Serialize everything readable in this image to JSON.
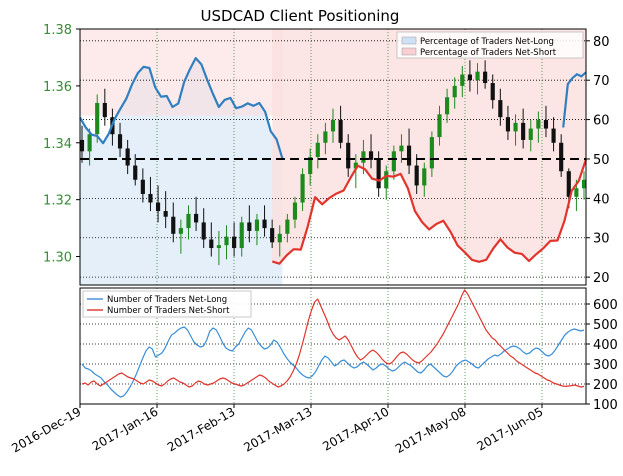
{
  "title": "USDCAD Client Positioning",
  "chart_data": [
    {
      "type": "candlestick+line",
      "title": "USDCAD Client Positioning",
      "price_axis": {
        "side": "left",
        "ylim": [
          1.29,
          1.38
        ],
        "ticks": [
          "1.30",
          "1.32",
          "1.34",
          "1.36",
          "1.38"
        ],
        "tick_values": [
          1.3,
          1.32,
          1.34,
          1.36,
          1.38
        ],
        "color": "#3a8a3a"
      },
      "percent_axis": {
        "side": "right",
        "ylim": [
          18,
          83
        ],
        "ticks": [
          "20",
          "30",
          "40",
          "50",
          "60",
          "70",
          "80"
        ],
        "tick_values": [
          20,
          30,
          40,
          50,
          60,
          70,
          80
        ]
      },
      "reference_line": {
        "value": 50,
        "style": "dashed"
      },
      "legend": {
        "placement": "top-right",
        "entries": [
          {
            "label": "Percentage of Traders Net-Long",
            "color": "#cfe2f5"
          },
          {
            "label": "Percentage of Traders Net-Short",
            "color": "#f9d0d0"
          }
        ]
      },
      "candles": [
        [
          1.341,
          1.346,
          1.333,
          1.337
        ],
        [
          1.337,
          1.345,
          1.332,
          1.343
        ],
        [
          1.343,
          1.357,
          1.34,
          1.354
        ],
        [
          1.354,
          1.359,
          1.346,
          1.349
        ],
        [
          1.349,
          1.352,
          1.339,
          1.343
        ],
        [
          1.343,
          1.347,
          1.335,
          1.338
        ],
        [
          1.338,
          1.341,
          1.329,
          1.332
        ],
        [
          1.332,
          1.336,
          1.325,
          1.327
        ],
        [
          1.327,
          1.331,
          1.319,
          1.322
        ],
        [
          1.322,
          1.328,
          1.316,
          1.319
        ],
        [
          1.319,
          1.325,
          1.312,
          1.316
        ],
        [
          1.316,
          1.323,
          1.31,
          1.314
        ],
        [
          1.314,
          1.319,
          1.305,
          1.308
        ],
        [
          1.308,
          1.313,
          1.301,
          1.31
        ],
        [
          1.31,
          1.318,
          1.306,
          1.315
        ],
        [
          1.315,
          1.321,
          1.309,
          1.312
        ],
        [
          1.312,
          1.317,
          1.303,
          1.306
        ],
        [
          1.306,
          1.312,
          1.3,
          1.303
        ],
        [
          1.303,
          1.309,
          1.297,
          1.304
        ],
        [
          1.304,
          1.311,
          1.299,
          1.307
        ],
        [
          1.307,
          1.312,
          1.3,
          1.303
        ],
        [
          1.303,
          1.314,
          1.3,
          1.312
        ],
        [
          1.312,
          1.318,
          1.305,
          1.309
        ],
        [
          1.309,
          1.315,
          1.304,
          1.313
        ],
        [
          1.313,
          1.318,
          1.307,
          1.31
        ],
        [
          1.31,
          1.313,
          1.303,
          1.305
        ],
        [
          1.305,
          1.311,
          1.3,
          1.308
        ],
        [
          1.308,
          1.315,
          1.305,
          1.313
        ],
        [
          1.313,
          1.321,
          1.31,
          1.319
        ],
        [
          1.319,
          1.331,
          1.316,
          1.329
        ],
        [
          1.329,
          1.338,
          1.325,
          1.335
        ],
        [
          1.335,
          1.343,
          1.331,
          1.34
        ],
        [
          1.34,
          1.347,
          1.336,
          1.344
        ],
        [
          1.344,
          1.352,
          1.34,
          1.348
        ],
        [
          1.348,
          1.353,
          1.338,
          1.34
        ],
        [
          1.34,
          1.343,
          1.328,
          1.331
        ],
        [
          1.331,
          1.336,
          1.324,
          1.333
        ],
        [
          1.333,
          1.341,
          1.329,
          1.337
        ],
        [
          1.337,
          1.343,
          1.331,
          1.334
        ],
        [
          1.334,
          1.337,
          1.321,
          1.324
        ],
        [
          1.324,
          1.332,
          1.32,
          1.33
        ],
        [
          1.33,
          1.339,
          1.327,
          1.337
        ],
        [
          1.337,
          1.343,
          1.333,
          1.339
        ],
        [
          1.339,
          1.345,
          1.329,
          1.332
        ],
        [
          1.332,
          1.336,
          1.322,
          1.325
        ],
        [
          1.325,
          1.333,
          1.321,
          1.331
        ],
        [
          1.331,
          1.344,
          1.328,
          1.342
        ],
        [
          1.342,
          1.353,
          1.339,
          1.35
        ],
        [
          1.35,
          1.359,
          1.347,
          1.356
        ],
        [
          1.356,
          1.363,
          1.352,
          1.36
        ],
        [
          1.36,
          1.367,
          1.356,
          1.364
        ],
        [
          1.364,
          1.369,
          1.358,
          1.362
        ],
        [
          1.362,
          1.368,
          1.357,
          1.365
        ],
        [
          1.365,
          1.369,
          1.359,
          1.361
        ],
        [
          1.361,
          1.364,
          1.352,
          1.355
        ],
        [
          1.355,
          1.359,
          1.346,
          1.349
        ],
        [
          1.349,
          1.353,
          1.341,
          1.344
        ],
        [
          1.344,
          1.35,
          1.339,
          1.347
        ],
        [
          1.347,
          1.352,
          1.338,
          1.341
        ],
        [
          1.341,
          1.348,
          1.337,
          1.345
        ],
        [
          1.345,
          1.351,
          1.34,
          1.348
        ],
        [
          1.348,
          1.353,
          1.342,
          1.345
        ],
        [
          1.345,
          1.349,
          1.337,
          1.34
        ],
        [
          1.34,
          1.343,
          1.328,
          1.33
        ],
        [
          1.33,
          1.331,
          1.317,
          1.321
        ],
        [
          1.321,
          1.327,
          1.316,
          1.324
        ],
        [
          1.324,
          1.33,
          1.32,
          1.327
        ]
      ],
      "series": [
        {
          "name": "Percentage of Traders Net-Long",
          "color": "#2f7fc1",
          "values": [
            60.5,
            58.0,
            56.2,
            55.8,
            54.0,
            56.5,
            60.2,
            62.8,
            65.3,
            68.9,
            71.8,
            73.4,
            73.1,
            68.2,
            65.8,
            66.0,
            63.2,
            64.1,
            69.5,
            72.8,
            75.6,
            74.0,
            70.1,
            66.5,
            63.2,
            65.0,
            65.5,
            62.9,
            63.3,
            64.1,
            63.5,
            64.2,
            62.0,
            57.0,
            55.0,
            50.1
          ]
        },
        {
          "name": "Percentage of Traders Net-Short",
          "color": "#e0342c",
          "values": [
            24.0,
            23.4,
            25.5,
            27.1,
            27.0,
            33.0,
            40.3,
            38.5,
            40.1,
            41.2,
            42.0,
            45.3,
            48.3,
            47.4,
            45.0,
            44.5,
            45.7,
            45.5,
            46.2,
            42.6,
            36.8,
            34.0,
            32.1,
            33.5,
            34.3,
            31.5,
            28.0,
            26.3,
            24.4,
            23.9,
            24.4,
            27.3,
            29.6,
            27.5,
            26.2,
            25.9,
            24.1,
            25.8,
            27.3,
            29.2,
            29.3,
            34.4,
            41.9,
            44.5,
            49.9
          ]
        }
      ]
    },
    {
      "type": "line",
      "ylim": [
        100,
        680
      ],
      "y_ticks": [
        "100",
        "200",
        "300",
        "400",
        "500",
        "600"
      ],
      "y_tick_values": [
        100,
        200,
        300,
        400,
        500,
        600
      ],
      "x_ticks": [
        "2016-Dec-19",
        "2017-Jan-16",
        "2017-Feb-13",
        "2017-Mar-13",
        "2017-Apr-10",
        "2017-May-08",
        "2017-Jun-05"
      ],
      "legend": {
        "placement": "top-left",
        "entries": [
          {
            "label": "Number of Traders Net-Long",
            "color": "#3b8fd8"
          },
          {
            "label": "Number of Traders Net-Short",
            "color": "#e0342c"
          }
        ]
      },
      "series": [
        {
          "name": "Number of Traders Net-Long",
          "color": "#3b8fd8",
          "values": [
            300,
            280,
            275,
            265,
            250,
            240,
            230,
            210,
            195,
            175,
            160,
            145,
            135,
            140,
            160,
            185,
            215,
            250,
            290,
            330,
            365,
            385,
            375,
            335,
            345,
            355,
            380,
            415,
            445,
            455,
            470,
            480,
            485,
            470,
            440,
            410,
            395,
            385,
            390,
            420,
            465,
            480,
            470,
            440,
            405,
            380,
            370,
            365,
            385,
            400,
            430,
            460,
            480,
            470,
            440,
            410,
            390,
            375,
            380,
            395,
            420,
            410,
            385,
            355,
            330,
            310,
            295,
            280,
            260,
            245,
            235,
            230,
            240,
            260,
            290,
            320,
            340,
            330,
            310,
            290,
            300,
            315,
            320,
            305,
            290,
            280,
            285,
            300,
            310,
            300,
            285,
            270,
            280,
            295,
            300,
            290,
            275,
            265,
            270,
            285,
            300,
            310,
            300,
            290,
            275,
            260,
            255,
            270,
            290,
            300,
            285,
            270,
            255,
            240,
            235,
            245,
            265,
            290,
            305,
            315,
            320,
            310,
            300,
            285,
            280,
            295,
            310,
            325,
            335,
            345,
            340,
            350,
            365,
            375,
            385,
            390,
            385,
            375,
            360,
            350,
            355,
            370,
            380,
            375,
            360,
            345,
            340,
            350,
            370,
            395,
            420,
            445,
            460,
            470,
            475,
            470,
            465,
            470
          ]
        },
        {
          "name": "Number of Traders Net-Short",
          "color": "#e0342c",
          "values": [
            200,
            205,
            195,
            210,
            215,
            200,
            190,
            200,
            210,
            220,
            230,
            240,
            250,
            255,
            245,
            235,
            230,
            225,
            215,
            205,
            200,
            210,
            220,
            215,
            205,
            195,
            190,
            200,
            215,
            225,
            230,
            220,
            210,
            205,
            195,
            185,
            190,
            205,
            215,
            210,
            200,
            195,
            200,
            205,
            215,
            225,
            230,
            225,
            215,
            205,
            200,
            195,
            190,
            195,
            205,
            215,
            225,
            235,
            245,
            240,
            230,
            215,
            205,
            195,
            185,
            190,
            200,
            215,
            235,
            265,
            300,
            345,
            400,
            460,
            520,
            570,
            610,
            625,
            590,
            555,
            520,
            480,
            450,
            430,
            420,
            430,
            440,
            420,
            390,
            360,
            335,
            320,
            330,
            345,
            360,
            370,
            360,
            345,
            325,
            310,
            300,
            305,
            320,
            340,
            355,
            360,
            350,
            335,
            320,
            310,
            305,
            315,
            330,
            345,
            360,
            380,
            400,
            425,
            450,
            480,
            510,
            540,
            570,
            600,
            640,
            670,
            650,
            620,
            590,
            560,
            530,
            500,
            470,
            450,
            430,
            420,
            400,
            385,
            370,
            355,
            340,
            330,
            315,
            305,
            295,
            285,
            275,
            265,
            255,
            250,
            240,
            230,
            220,
            215,
            205,
            200,
            195,
            190,
            188,
            190,
            192,
            195,
            190,
            185,
            188
          ]
        }
      ]
    }
  ]
}
